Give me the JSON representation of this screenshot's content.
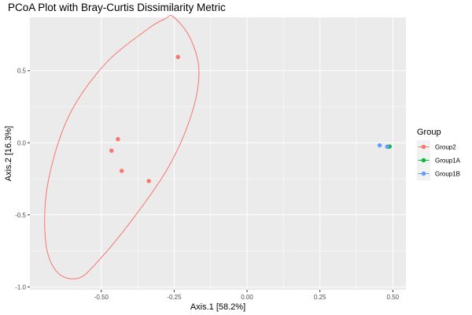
{
  "chart_data": {
    "type": "scatter",
    "title": "PCoA Plot with Bray-Curtis Dissimilarity Metric",
    "xlabel": "Axis.1   [58.2%]",
    "ylabel": "Axis.2   [16.3%]",
    "xlim": [
      -0.745,
      0.545
    ],
    "ylim": [
      -1.02,
      0.87
    ],
    "xticks": [
      -0.5,
      -0.25,
      0.0,
      0.25,
      0.5
    ],
    "xtick_labels": [
      "-0.50",
      "-0.25",
      "0.00",
      "0.25",
      "0.50"
    ],
    "yticks": [
      -1.0,
      -0.5,
      0.0,
      0.5
    ],
    "ytick_labels": [
      "-1.0",
      "-0.5",
      "0.0",
      "0.5"
    ],
    "grid": true,
    "legend": {
      "title": "Group",
      "placement": "right",
      "entries": [
        "Group2",
        "Group1A",
        "Group1B"
      ]
    },
    "series": [
      {
        "name": "Group2",
        "color": "#F8766D",
        "points": [
          {
            "x": -0.237,
            "y": 0.595
          },
          {
            "x": -0.443,
            "y": 0.025
          },
          {
            "x": -0.465,
            "y": -0.055
          },
          {
            "x": -0.43,
            "y": -0.195
          },
          {
            "x": -0.337,
            "y": -0.265
          }
        ],
        "ellipse": {
          "path": [
            [
              -0.254,
              0.875
            ],
            [
              -0.196,
              0.73
            ],
            [
              -0.165,
              0.5
            ],
            [
              -0.19,
              0.2
            ],
            [
              -0.27,
              -0.17
            ],
            [
              -0.4,
              -0.55
            ],
            [
              -0.515,
              -0.83
            ],
            [
              -0.58,
              -0.94
            ],
            [
              -0.65,
              -0.9
            ],
            [
              -0.69,
              -0.7
            ],
            [
              -0.685,
              -0.3
            ],
            [
              -0.615,
              0.17
            ],
            [
              -0.49,
              0.54
            ],
            [
              -0.34,
              0.79
            ],
            [
              -0.28,
              0.86
            ],
            [
              -0.254,
              0.875
            ]
          ]
        }
      },
      {
        "name": "Group1A",
        "color": "#00BA38",
        "points": [
          {
            "x": 0.484,
            "y": -0.028
          },
          {
            "x": 0.489,
            "y": -0.026
          }
        ]
      },
      {
        "name": "Group1B",
        "color": "#619CFF",
        "points": [
          {
            "x": 0.455,
            "y": -0.018
          },
          {
            "x": 0.481,
            "y": -0.027
          }
        ]
      }
    ]
  }
}
